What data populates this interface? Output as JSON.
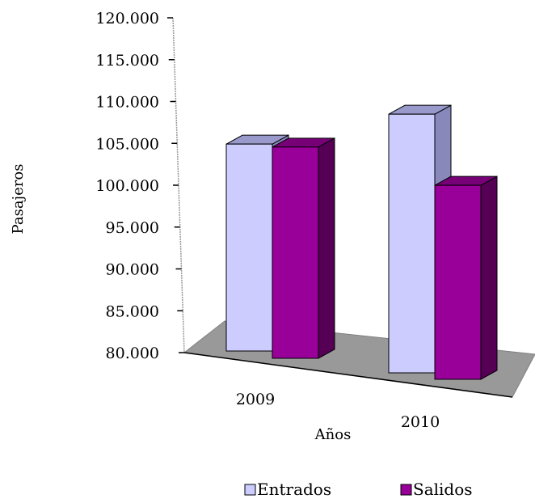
{
  "chart_data": {
    "type": "bar",
    "categories": [
      "2009",
      "2010"
    ],
    "series": [
      {
        "name": "Entrados",
        "values": [
          104000,
          110000
        ]
      },
      {
        "name": "Salidos",
        "values": [
          104500,
          102500
        ]
      }
    ],
    "xlabel": "Años",
    "ylabel": "Pasajeros",
    "ylim": [
      80000,
      120000
    ],
    "yticks": [
      "120.000",
      "115.000",
      "110.000",
      "105.000",
      "100.000",
      "95.000",
      "90.000",
      "85.000",
      "80.000"
    ],
    "legend": {
      "position": "bottom",
      "entries": [
        "Entrados",
        "Salidos"
      ]
    },
    "grid": false,
    "style": "3d-column"
  },
  "colors": {
    "entrados": "#ccccff",
    "entrados_top": "#9999cc",
    "entrados_side": "#8888bb",
    "salidos": "#990099",
    "salidos_top": "#770077",
    "salidos_side": "#550055",
    "floor": "#999999"
  }
}
